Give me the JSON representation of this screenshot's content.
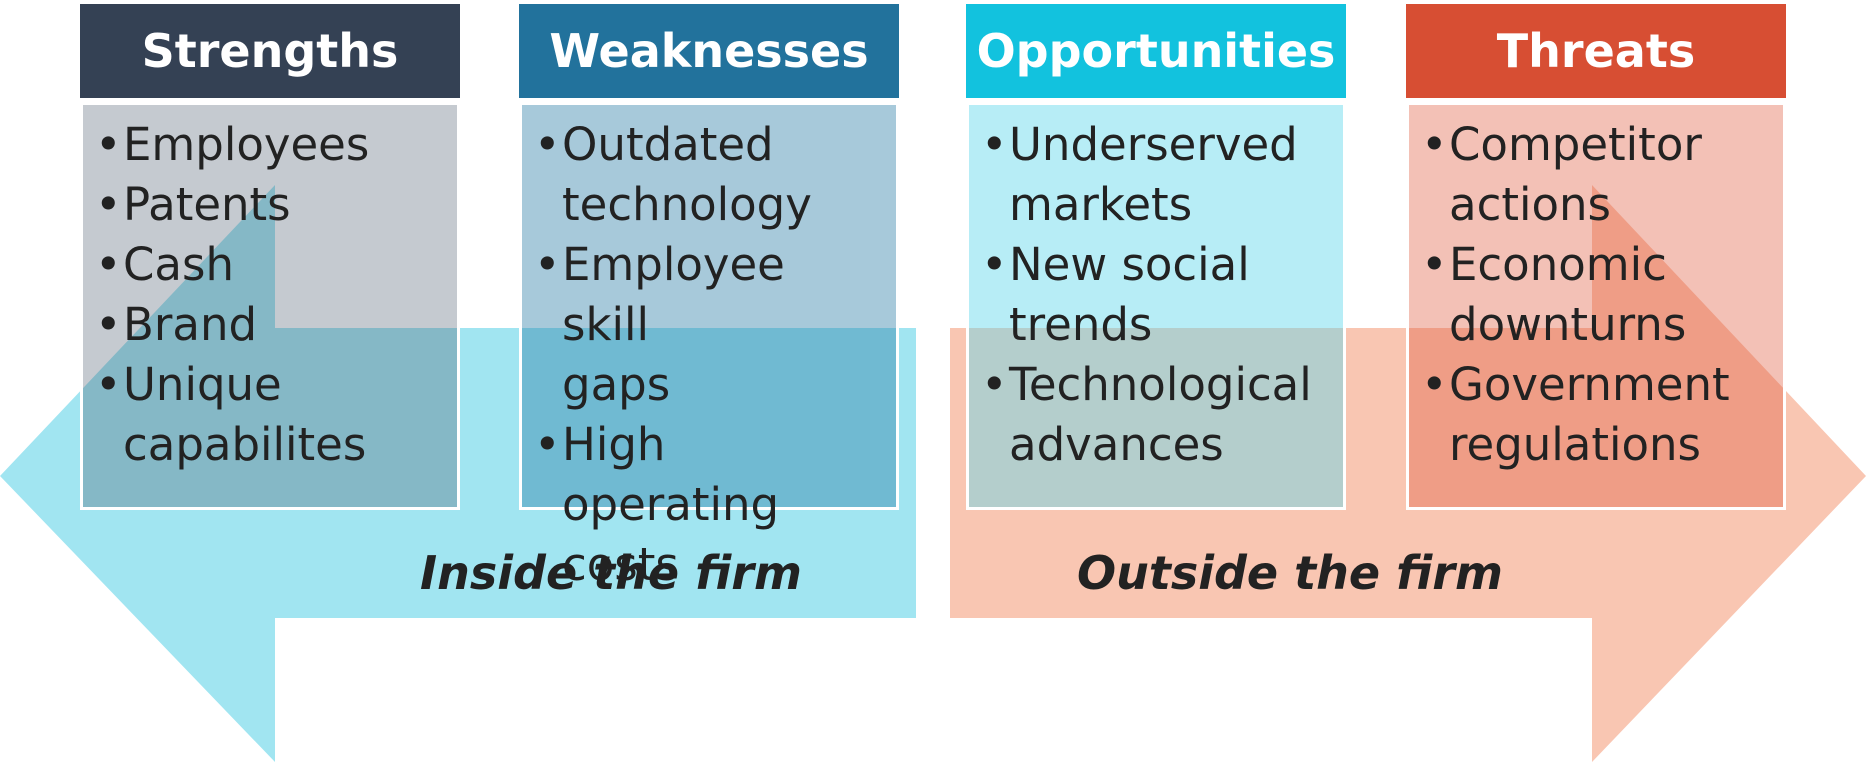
{
  "colors": {
    "inside_arrow": "#a1e5f1",
    "outside_arrow": "#f9c6b2",
    "strengths_head": "#344154",
    "weaknesses_head": "#22729c",
    "opportunities_head": "#12c2de",
    "threats_head": "#d74e33",
    "strengths_body": "#4a5a6e",
    "weaknesses_body": "#2d7fa8",
    "opportunities_body": "#5fd7ec",
    "threats_body": "#df5d40"
  },
  "quadrants": [
    {
      "title": "Strengths",
      "items": [
        [
          "Employees"
        ],
        [
          "Patents"
        ],
        [
          "Cash"
        ],
        [
          "Brand"
        ],
        [
          "Unique",
          "capabilites"
        ]
      ]
    },
    {
      "title": "Weaknesses",
      "items": [
        [
          "Outdated",
          "technology"
        ],
        [
          "Employee skill",
          "gaps"
        ],
        [
          "High operating",
          "costs"
        ]
      ]
    },
    {
      "title": "Opportunities",
      "items": [
        [
          "Underserved",
          "markets"
        ],
        [
          "New social",
          "trends"
        ],
        [
          "Technological",
          "advances"
        ]
      ]
    },
    {
      "title": "Threats",
      "items": [
        [
          "Competitor",
          "actions"
        ],
        [
          "Economic",
          "downturns"
        ],
        [
          "Government",
          "regulations"
        ]
      ]
    }
  ],
  "zones": {
    "inside": "Inside the firm",
    "outside": "Outside the firm"
  }
}
